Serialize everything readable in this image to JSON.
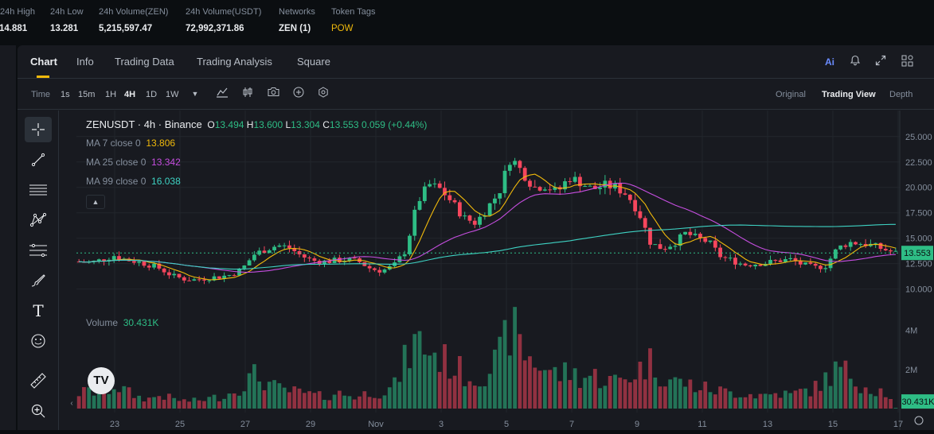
{
  "stats": [
    {
      "label": "24h High",
      "value": "14.881"
    },
    {
      "label": "24h Low",
      "value": "13.281"
    },
    {
      "label": "24h Volume(ZEN)",
      "value": "5,215,597.47"
    },
    {
      "label": "24h Volume(USDT)",
      "value": "72,992,371.86"
    },
    {
      "label": "Networks",
      "value": "ZEN (1)"
    },
    {
      "label": "Token Tags",
      "value": "POW"
    }
  ],
  "tabs": [
    "Chart",
    "Info",
    "Trading Data",
    "Trading Analysis",
    "Square"
  ],
  "tab_icons": [
    "ai-icon",
    "bell-icon",
    "expand-icon",
    "grid-icon"
  ],
  "ai_label": "Ai",
  "toolbar": {
    "time_label": "Time",
    "intervals": [
      "1s",
      "15m",
      "1H",
      "4H",
      "1D",
      "1W"
    ],
    "active_interval": "4H",
    "views": [
      "Original",
      "Trading View",
      "Depth"
    ],
    "active_view": "Trading View"
  },
  "drawing_tools": [
    "crosshair-icon",
    "trendline-icon",
    "horizontal-lines-icon",
    "pattern-icon",
    "fib-retracement-icon",
    "brush-icon",
    "text-icon",
    "emoji-icon",
    "ruler-icon",
    "zoom-in-icon"
  ],
  "text_tool_glyph": "T",
  "logo_text": "TV",
  "legend": {
    "title": "ZENUSDT · 4h · Binance",
    "o_label": "O",
    "o": "13.494",
    "h_label": "H",
    "h": "13.600",
    "l_label": "L",
    "l": "13.304",
    "c_label": "C",
    "c": "13.553",
    "change": "0.059 (+0.44%)",
    "ma7_label": "MA 7 close 0",
    "ma7": "13.806",
    "ma25_label": "MA 25 close 0",
    "ma25": "13.342",
    "ma99_label": "MA 99 close 0",
    "ma99": "16.038",
    "volume_label": "Volume",
    "volume": "30.431K"
  },
  "colors": {
    "up": "#2ebd85",
    "down": "#f6465d",
    "ma7": "#f0b90b",
    "ma25": "#c64ee0",
    "ma99": "#3ed2c3"
  },
  "chart_data": {
    "type": "candlestick",
    "symbol": "ZENUSDT",
    "interval": "4h",
    "x_ticks": [
      "23",
      "25",
      "27",
      "29",
      "Nov",
      "3",
      "5",
      "7",
      "9",
      "11",
      "13",
      "15",
      "17"
    ],
    "y_ticks": [
      "25.000",
      "22.500",
      "20.000",
      "17.500",
      "15.000",
      "12.500",
      "10.000"
    ],
    "volume_ticks": [
      "4M",
      "2M"
    ],
    "ylim": [
      8.8,
      26
    ],
    "last_price": "13.553",
    "last_volume": "30.431K",
    "candle_count": 164,
    "close_series": [
      12.7,
      12.6,
      12.9,
      13.3,
      12.9,
      12.7,
      12.4,
      12.0,
      11.3,
      11.0,
      10.9,
      11.1,
      11.2,
      11.4,
      12.0,
      13.4,
      13.9,
      14.3,
      14.1,
      13.3,
      12.8,
      12.7,
      12.8,
      12.9,
      12.7,
      12.0,
      11.8,
      12.3,
      13.8,
      18.5,
      20.3,
      19.8,
      18.5,
      17.0,
      16.5,
      18.0,
      19.5,
      23.0,
      21.5,
      20.0,
      20.2,
      19.5,
      21.0,
      20.5,
      19.8,
      20.2,
      20.0,
      19.3,
      17.5,
      14.5,
      14.0,
      14.5,
      15.5,
      15.0,
      14.6,
      13.2,
      12.8,
      12.4,
      12.5,
      12.6,
      12.8,
      12.9,
      12.4,
      12.1,
      12.3,
      14.0,
      14.6,
      14.5,
      14.3,
      13.9,
      13.55
    ],
    "volume_series": [
      0.8,
      0.9,
      0.7,
      1.2,
      0.9,
      0.6,
      0.5,
      0.7,
      0.5,
      0.4,
      0.4,
      0.5,
      0.6,
      0.8,
      1.2,
      1.7,
      1.4,
      1.0,
      0.9,
      0.8,
      0.7,
      0.6,
      0.8,
      0.7,
      0.6,
      0.9,
      0.8,
      1.1,
      2.5,
      3.5,
      3.0,
      2.6,
      2.2,
      1.8,
      1.5,
      2.0,
      2.5,
      4.3,
      3.0,
      2.4,
      2.1,
      1.7,
      1.9,
      1.6,
      1.7,
      1.5,
      1.4,
      1.6,
      2.0,
      2.4,
      1.7,
      1.4,
      1.3,
      1.1,
      1.0,
      0.9,
      0.8,
      0.8,
      0.7,
      0.7,
      0.8,
      0.7,
      0.9,
      1.0,
      1.5,
      2.0,
      1.8,
      1.3,
      1.0,
      0.9,
      0.03
    ]
  }
}
